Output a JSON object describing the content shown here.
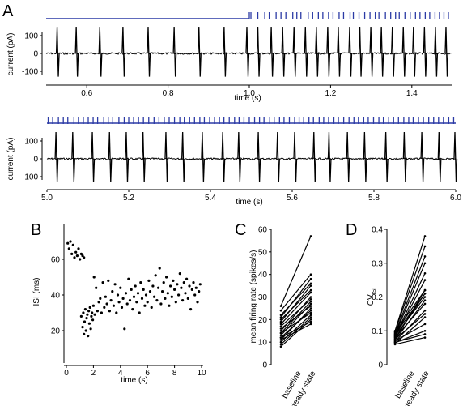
{
  "colors": {
    "stimulus": "#2b3aa5",
    "trace": "#000000",
    "axis": "#000000"
  },
  "chart_data": [
    {
      "panel": "A",
      "subpanel": "top",
      "type": "line",
      "xlabel": "time (s)",
      "ylabel": "current (pA)",
      "xlim": [
        0.5,
        1.5
      ],
      "ylim": [
        -150,
        200
      ],
      "xticks": [
        0.6,
        0.8,
        1.0,
        1.2,
        1.4
      ],
      "xtick_labels": [
        "0.6",
        "0.8",
        "1.0",
        "1.2",
        "1.4"
      ],
      "yticks": [
        100,
        0,
        -100
      ],
      "ytick_labels": [
        "100",
        "0",
        "-100"
      ],
      "stim_onset": 1.0,
      "stim_pulse_times": [
        1.0,
        1.004,
        1.021,
        1.038,
        1.049,
        1.066,
        1.078,
        1.09,
        1.107,
        1.117,
        1.127,
        1.145,
        1.156,
        1.17,
        1.181,
        1.195,
        1.206,
        1.221,
        1.232,
        1.248,
        1.256,
        1.27,
        1.284,
        1.297,
        1.31,
        1.319,
        1.335,
        1.348,
        1.36,
        1.369,
        1.383,
        1.396,
        1.409,
        1.42,
        1.433,
        1.444,
        1.457,
        1.468,
        1.479,
        1.49
      ],
      "spike_times": [
        0.527,
        0.574,
        0.632,
        0.689,
        0.751,
        0.815,
        0.876,
        0.938,
        0.994,
        1.021,
        1.054,
        1.082,
        1.11,
        1.138,
        1.165,
        1.193,
        1.219,
        1.247,
        1.272,
        1.299,
        1.325,
        1.352,
        1.379,
        1.404,
        1.431,
        1.458,
        1.484
      ]
    },
    {
      "panel": "A",
      "subpanel": "bottom",
      "type": "line",
      "xlabel": "time (s)",
      "ylabel": "current (pA)",
      "xlim": [
        5.0,
        6.0
      ],
      "ylim": [
        -150,
        200
      ],
      "xticks": [
        5.0,
        5.2,
        5.4,
        5.6,
        5.8,
        6.0
      ],
      "xtick_labels": [
        "5.0",
        "5.2",
        "5.4",
        "5.6",
        "5.8",
        "6.0"
      ],
      "yticks": [
        100,
        0,
        -100
      ],
      "ytick_labels": [
        "100",
        "0",
        "-100"
      ],
      "stim_pulse_times": [
        5.003,
        5.014,
        5.028,
        5.04,
        5.051,
        5.066,
        5.077,
        5.089,
        5.101,
        5.113,
        5.124,
        5.139,
        5.15,
        5.161,
        5.176,
        5.189,
        5.2,
        5.212,
        5.224,
        5.236,
        5.249,
        5.262,
        5.274,
        5.287,
        5.299,
        5.312,
        5.325,
        5.336,
        5.349,
        5.361,
        5.374,
        5.385,
        5.398,
        5.41,
        5.422,
        5.433,
        5.446,
        5.459,
        5.47,
        5.482,
        5.495,
        5.508,
        5.52,
        5.531,
        5.545,
        5.556,
        5.569,
        5.58,
        5.593,
        5.606,
        5.617,
        5.628,
        5.641,
        5.652,
        5.666,
        5.677,
        5.689,
        5.702,
        5.713,
        5.726,
        5.739,
        5.751,
        5.762,
        5.775,
        5.786,
        5.799,
        5.812,
        5.823,
        5.836,
        5.848,
        5.86,
        5.873,
        5.885,
        5.896,
        5.909,
        5.921,
        5.934,
        5.946,
        5.958,
        5.97,
        5.983,
        5.995
      ],
      "spike_times": [
        5.022,
        5.063,
        5.111,
        5.153,
        5.194,
        5.235,
        5.291,
        5.332,
        5.38,
        5.43,
        5.469,
        5.517,
        5.564,
        5.606,
        5.653,
        5.69,
        5.735,
        5.777,
        5.829,
        5.874,
        5.917,
        5.959,
        5.998
      ]
    },
    {
      "panel": "B",
      "type": "scatter",
      "xlabel": "time (s)",
      "ylabel": "ISI (ms)",
      "xlim": [
        0,
        10
      ],
      "ylim": [
        10,
        75
      ],
      "xticks": [
        0,
        2,
        4,
        6,
        8,
        10
      ],
      "yticks": [
        20,
        40,
        60
      ],
      "points_baseline": [
        [
          0.1,
          69
        ],
        [
          0.2,
          66
        ],
        [
          0.3,
          70
        ],
        [
          0.4,
          63
        ],
        [
          0.5,
          68
        ],
        [
          0.6,
          61
        ],
        [
          0.7,
          64
        ],
        [
          0.8,
          62
        ],
        [
          0.9,
          66
        ],
        [
          1.0,
          60
        ],
        [
          1.1,
          63
        ],
        [
          1.2,
          62
        ],
        [
          1.3,
          61
        ]
      ],
      "points_steady_state": [
        [
          1.1,
          28
        ],
        [
          1.2,
          22
        ],
        [
          1.25,
          30
        ],
        [
          1.3,
          18
        ],
        [
          1.35,
          25
        ],
        [
          1.4,
          32
        ],
        [
          1.45,
          20
        ],
        [
          1.5,
          27
        ],
        [
          1.55,
          29
        ],
        [
          1.6,
          17
        ],
        [
          1.65,
          31
        ],
        [
          1.7,
          24
        ],
        [
          1.75,
          33
        ],
        [
          1.8,
          21
        ],
        [
          1.85,
          28
        ],
        [
          1.9,
          30
        ],
        [
          1.95,
          26
        ],
        [
          2.0,
          34
        ],
        [
          2.05,
          50
        ],
        [
          2.1,
          29
        ],
        [
          2.2,
          44
        ],
        [
          2.3,
          31
        ],
        [
          2.4,
          36
        ],
        [
          2.5,
          38
        ],
        [
          2.6,
          30
        ],
        [
          2.7,
          47
        ],
        [
          2.8,
          33
        ],
        [
          2.9,
          39
        ],
        [
          3.0,
          35
        ],
        [
          3.1,
          48
        ],
        [
          3.2,
          31
        ],
        [
          3.3,
          37
        ],
        [
          3.4,
          42
        ],
        [
          3.5,
          34
        ],
        [
          3.6,
          46
        ],
        [
          3.7,
          30
        ],
        [
          3.8,
          40
        ],
        [
          3.9,
          36
        ],
        [
          4.0,
          44
        ],
        [
          4.1,
          33
        ],
        [
          4.2,
          38
        ],
        [
          4.3,
          21
        ],
        [
          4.4,
          41
        ],
        [
          4.5,
          35
        ],
        [
          4.6,
          49
        ],
        [
          4.7,
          37
        ],
        [
          4.8,
          43
        ],
        [
          4.9,
          32
        ],
        [
          5.0,
          39
        ],
        [
          5.1,
          45
        ],
        [
          5.2,
          36
        ],
        [
          5.3,
          41
        ],
        [
          5.4,
          30
        ],
        [
          5.5,
          47
        ],
        [
          5.6,
          38
        ],
        [
          5.7,
          43
        ],
        [
          5.8,
          34
        ],
        [
          5.9,
          40
        ],
        [
          6.0,
          36
        ],
        [
          6.1,
          48
        ],
        [
          6.2,
          42
        ],
        [
          6.3,
          33
        ],
        [
          6.4,
          45
        ],
        [
          6.5,
          39
        ],
        [
          6.6,
          51
        ],
        [
          6.7,
          37
        ],
        [
          6.8,
          44
        ],
        [
          6.9,
          55
        ],
        [
          7.0,
          35
        ],
        [
          7.1,
          42
        ],
        [
          7.2,
          47
        ],
        [
          7.3,
          38
        ],
        [
          7.4,
          50
        ],
        [
          7.5,
          41
        ],
        [
          7.6,
          34
        ],
        [
          7.7,
          45
        ],
        [
          7.8,
          39
        ],
        [
          7.9,
          48
        ],
        [
          8.0,
          43
        ],
        [
          8.1,
          36
        ],
        [
          8.2,
          46
        ],
        [
          8.3,
          40
        ],
        [
          8.4,
          52
        ],
        [
          8.5,
          44
        ],
        [
          8.6,
          37
        ],
        [
          8.7,
          47
        ],
        [
          8.8,
          41
        ],
        [
          8.9,
          49
        ],
        [
          9.0,
          38
        ],
        [
          9.1,
          45
        ],
        [
          9.2,
          32
        ],
        [
          9.3,
          43
        ],
        [
          9.4,
          47
        ],
        [
          9.5,
          40
        ],
        [
          9.6,
          44
        ],
        [
          9.7,
          36
        ],
        [
          9.8,
          42
        ],
        [
          9.9,
          46
        ]
      ]
    },
    {
      "panel": "C",
      "type": "line",
      "ylabel": "mean firing rate (spikes/s)",
      "categories": [
        "baseline",
        "steady state"
      ],
      "ylim": [
        0,
        60
      ],
      "yticks": [
        0,
        10,
        20,
        30,
        40,
        50,
        60
      ],
      "pairs": [
        [
          8,
          20
        ],
        [
          10,
          22
        ],
        [
          11,
          25
        ],
        [
          12,
          24
        ],
        [
          13,
          27
        ],
        [
          14,
          28
        ],
        [
          15,
          30
        ],
        [
          16,
          26
        ],
        [
          17,
          29
        ],
        [
          18,
          32
        ],
        [
          19,
          35
        ],
        [
          20,
          33
        ],
        [
          21,
          38
        ],
        [
          22,
          36
        ],
        [
          24,
          40
        ],
        [
          26,
          57
        ],
        [
          9,
          21
        ],
        [
          12,
          19
        ],
        [
          14,
          23
        ],
        [
          11,
          18
        ]
      ]
    },
    {
      "panel": "D",
      "type": "line",
      "ylabel": "CV",
      "ylabel_subscript": "ISI",
      "categories": [
        "baseline",
        "steady state"
      ],
      "ylim": [
        0,
        0.4
      ],
      "yticks": [
        0,
        0.1,
        0.2,
        0.3,
        0.4
      ],
      "ytick_labels": [
        "0",
        "0.1",
        "0.2",
        "0.3",
        "0.4"
      ],
      "pairs": [
        [
          0.06,
          0.08
        ],
        [
          0.065,
          0.1
        ],
        [
          0.07,
          0.12
        ],
        [
          0.075,
          0.15
        ],
        [
          0.08,
          0.18
        ],
        [
          0.085,
          0.2
        ],
        [
          0.09,
          0.21
        ],
        [
          0.095,
          0.22
        ],
        [
          0.062,
          0.14
        ],
        [
          0.068,
          0.16
        ],
        [
          0.072,
          0.19
        ],
        [
          0.078,
          0.21
        ],
        [
          0.082,
          0.25
        ],
        [
          0.088,
          0.3
        ],
        [
          0.092,
          0.32
        ],
        [
          0.098,
          0.35
        ],
        [
          0.1,
          0.38
        ],
        [
          0.074,
          0.22
        ],
        [
          0.066,
          0.09
        ],
        [
          0.084,
          0.27
        ]
      ]
    }
  ],
  "panels": {
    "a": {
      "letter": "A"
    },
    "b": {
      "letter": "B"
    },
    "c": {
      "letter": "C",
      "baseline_label": "baseline",
      "steady_label": "steady state"
    },
    "d": {
      "letter": "D",
      "baseline_label": "baseline",
      "steady_label": "steady state"
    }
  }
}
